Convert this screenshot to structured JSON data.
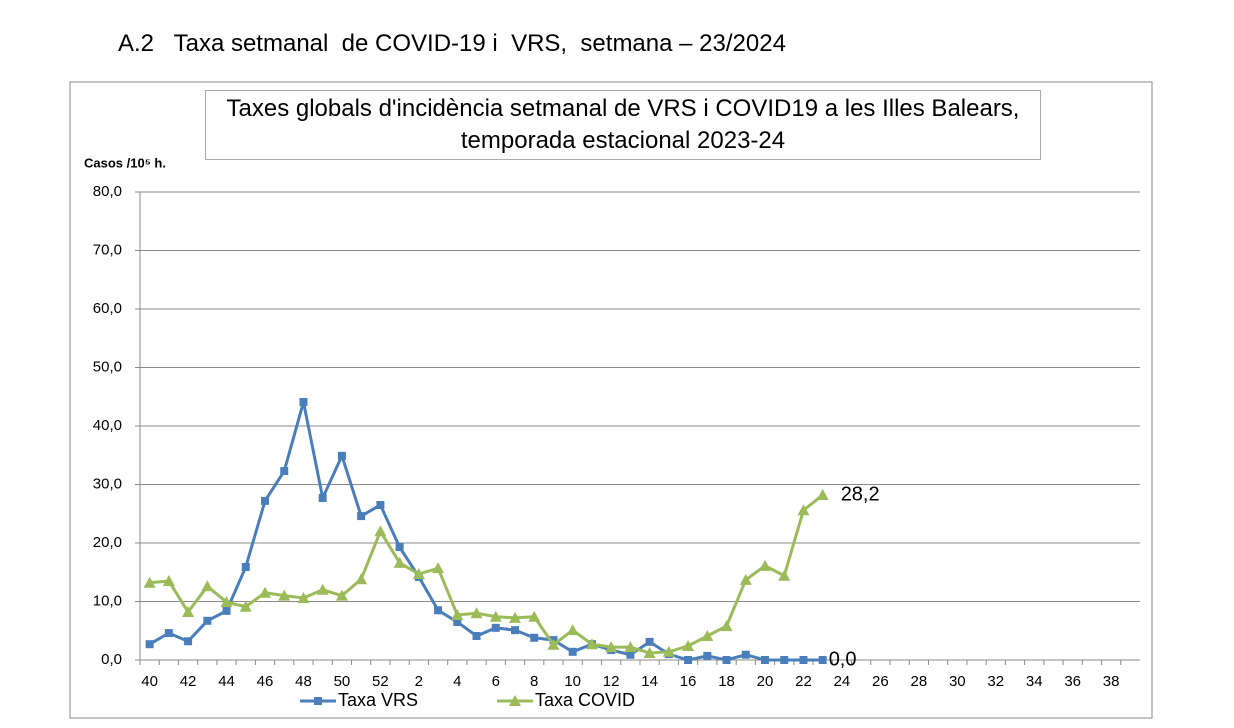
{
  "heading": "A.2   Taxa setmanal  de COVID-19 i  VRS,  setmana – 23/2024",
  "chart_data": {
    "type": "line",
    "title": "Taxes globals d'incidència setmanal de VRS i COVID19 a les Illes Balears, temporada estacional 2023-24",
    "y_label": "Casos /10⁵ h.",
    "categories": [
      "40",
      null,
      "42",
      null,
      "44",
      null,
      "46",
      null,
      "48",
      null,
      "50",
      null,
      "52",
      null,
      "2",
      null,
      "4",
      null,
      "6",
      null,
      "8",
      null,
      "10",
      null,
      "12",
      null,
      "14",
      null,
      "16",
      null,
      "18",
      null,
      "20",
      null,
      "22",
      null,
      "24",
      null,
      "26",
      null,
      "28",
      null,
      "30",
      null,
      "32",
      null,
      "34",
      null,
      "36",
      null,
      "38",
      null
    ],
    "series": [
      {
        "name": "Taxa VRS",
        "color": "#4a7ebb",
        "marker": "square",
        "values": [
          2.7,
          4.6,
          3.2,
          6.7,
          8.4,
          15.9,
          27.2,
          32.3,
          44.1,
          27.7,
          34.9,
          24.6,
          26.5,
          19.3,
          14.2,
          8.5,
          6.5,
          4.1,
          5.5,
          5.1,
          3.8,
          3.4,
          1.4,
          2.7,
          1.7,
          0.9,
          3.1,
          1.0,
          0.0,
          0.7,
          0.0,
          0.9,
          0.0,
          0.0,
          0.0,
          0.0,
          null,
          null,
          null,
          null,
          null,
          null,
          null,
          null,
          null,
          null,
          null,
          null,
          null,
          null,
          null,
          null
        ],
        "value_labels": [
          null,
          null,
          null,
          null,
          null,
          null,
          null,
          null,
          null,
          null,
          null,
          null,
          null,
          null,
          null,
          null,
          null,
          null,
          null,
          null,
          null,
          null,
          null,
          null,
          null,
          null,
          null,
          null,
          null,
          null,
          null,
          null,
          null,
          null,
          null,
          "0,0",
          null,
          null,
          null,
          null,
          null,
          null,
          null,
          null,
          null,
          null,
          null,
          null,
          null,
          null,
          null,
          null
        ]
      },
      {
        "name": "Taxa COVID",
        "color": "#9bbb59",
        "marker": "triangle",
        "values": [
          13.2,
          13.5,
          8.2,
          12.6,
          9.9,
          9.1,
          11.5,
          11.0,
          10.6,
          12.0,
          11.0,
          13.8,
          22.0,
          16.6,
          14.7,
          15.7,
          7.7,
          8.0,
          7.4,
          7.2,
          7.4,
          2.6,
          5.1,
          2.7,
          2.2,
          2.2,
          1.2,
          1.4,
          2.4,
          4.1,
          5.8,
          13.7,
          16.1,
          14.4,
          25.6,
          28.2,
          null,
          null,
          null,
          null,
          null,
          null,
          null,
          null,
          null,
          null,
          null,
          null,
          null,
          null,
          null,
          null
        ],
        "value_labels": [
          null,
          null,
          null,
          null,
          null,
          null,
          null,
          null,
          null,
          null,
          null,
          null,
          null,
          null,
          null,
          null,
          null,
          null,
          null,
          null,
          null,
          null,
          null,
          null,
          null,
          null,
          null,
          null,
          null,
          null,
          null,
          null,
          null,
          null,
          null,
          "28,2",
          null,
          null,
          null,
          null,
          null,
          null,
          null,
          null,
          null,
          null,
          null,
          null,
          null,
          null,
          null,
          null
        ]
      }
    ],
    "ylim": [
      0,
      80
    ],
    "yticks": [
      {
        "value": 0,
        "label": "0,0"
      },
      {
        "value": 10,
        "label": "10,0"
      },
      {
        "value": 20,
        "label": "20,0"
      },
      {
        "value": 30,
        "label": "30,0"
      },
      {
        "value": 40,
        "label": "40,0"
      },
      {
        "value": 50,
        "label": "50,0"
      },
      {
        "value": 60,
        "label": "60,0"
      },
      {
        "value": 70,
        "label": "70,0"
      },
      {
        "value": 80,
        "label": "80,0"
      }
    ],
    "grid": true,
    "legend": "bottom"
  }
}
